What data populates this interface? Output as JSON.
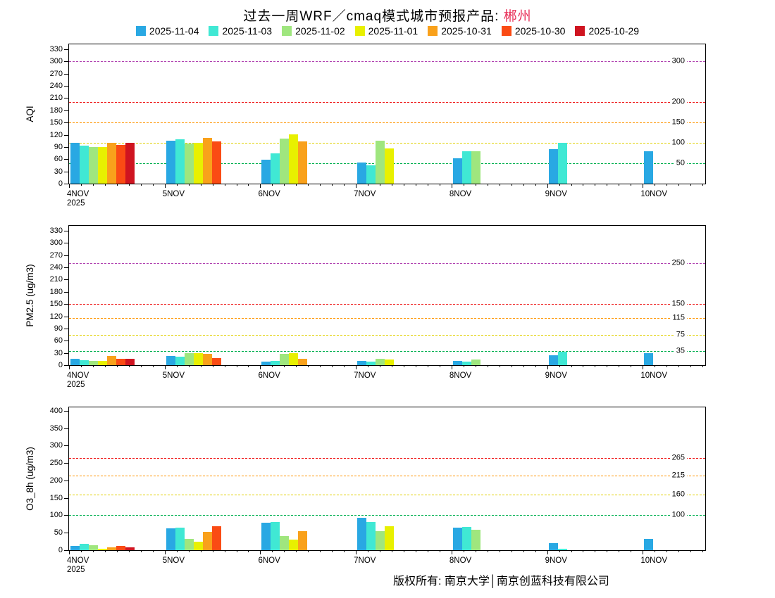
{
  "title": {
    "prefix": "过去一周WRF／cmaq模式城市预报产品: ",
    "city": "郴州",
    "city_color": "#e8335a"
  },
  "footer": "版权所有: 南京大学│南京创蓝科技有限公司",
  "x_sub_label": "2025",
  "legend": [
    {
      "label": "2025-11-04",
      "color": "#29a8e3"
    },
    {
      "label": "2025-11-03",
      "color": "#40e8d4"
    },
    {
      "label": "2025-11-02",
      "color": "#9fe67e"
    },
    {
      "label": "2025-11-01",
      "color": "#e8f000"
    },
    {
      "label": "2025-10-31",
      "color": "#f9a11b"
    },
    {
      "label": "2025-10-30",
      "color": "#fa4b14"
    },
    {
      "label": "2025-10-29",
      "color": "#cf1420"
    }
  ],
  "chart_data": [
    {
      "type": "bar",
      "title": "AQI forecast by model run date",
      "ylabel": "AQI",
      "xlabel": "",
      "ylim": [
        0,
        342
      ],
      "yticks": [
        0,
        30,
        60,
        90,
        120,
        150,
        180,
        210,
        240,
        270,
        300,
        330
      ],
      "categories": [
        "4NOV",
        "5NOV",
        "6NOV",
        "7NOV",
        "8NOV",
        "9NOV",
        "10NOV"
      ],
      "legend_position": "top",
      "grid": false,
      "ref_lines": [
        {
          "value": 50,
          "color": "#00b050",
          "label": "50"
        },
        {
          "value": 100,
          "color": "#e0d000",
          "label": "100"
        },
        {
          "value": 150,
          "color": "#ff9500",
          "label": "150"
        },
        {
          "value": 200,
          "color": "#ee1111",
          "label": "200"
        },
        {
          "value": 300,
          "color": "#b040b0",
          "label": "300"
        }
      ],
      "series": [
        {
          "name": "2025-11-04",
          "color": "#29a8e3",
          "values": [
            100,
            105,
            58,
            52,
            62,
            85,
            80
          ]
        },
        {
          "name": "2025-11-03",
          "color": "#40e8d4",
          "values": [
            93,
            108,
            75,
            45,
            79,
            101,
            null
          ]
        },
        {
          "name": "2025-11-02",
          "color": "#9fe67e",
          "values": [
            90,
            98,
            110,
            105,
            79,
            null,
            null
          ]
        },
        {
          "name": "2025-11-01",
          "color": "#e8f000",
          "values": [
            90,
            100,
            121,
            87,
            null,
            null,
            null
          ]
        },
        {
          "name": "2025-10-31",
          "color": "#f9a11b",
          "values": [
            100,
            112,
            104,
            null,
            null,
            null,
            null
          ]
        },
        {
          "name": "2025-10-30",
          "color": "#fa4b14",
          "values": [
            95,
            103,
            null,
            null,
            null,
            null,
            null
          ]
        },
        {
          "name": "2025-10-29",
          "color": "#cf1420",
          "values": [
            100,
            null,
            null,
            null,
            null,
            null,
            null
          ]
        }
      ]
    },
    {
      "type": "bar",
      "title": "PM2.5 forecast by model run date",
      "ylabel": "PM2.5 (ug/m3)",
      "xlabel": "",
      "ylim": [
        0,
        342
      ],
      "yticks": [
        0,
        30,
        60,
        90,
        120,
        150,
        180,
        210,
        240,
        270,
        300,
        330
      ],
      "categories": [
        "4NOV",
        "5NOV",
        "6NOV",
        "7NOV",
        "8NOV",
        "9NOV",
        "10NOV"
      ],
      "legend_position": "top",
      "grid": false,
      "ref_lines": [
        {
          "value": 35,
          "color": "#00b050",
          "label": "35"
        },
        {
          "value": 75,
          "color": "#e0d000",
          "label": "75"
        },
        {
          "value": 115,
          "color": "#ff9500",
          "label": "115"
        },
        {
          "value": 150,
          "color": "#ee1111",
          "label": "150"
        },
        {
          "value": 250,
          "color": "#b040b0",
          "label": "250"
        }
      ],
      "series": [
        {
          "name": "2025-11-04",
          "color": "#29a8e3",
          "values": [
            15,
            22,
            8,
            10,
            10,
            25,
            30
          ]
        },
        {
          "name": "2025-11-03",
          "color": "#40e8d4",
          "values": [
            12,
            20,
            10,
            8,
            8,
            32,
            null
          ]
        },
        {
          "name": "2025-11-02",
          "color": "#9fe67e",
          "values": [
            10,
            30,
            28,
            15,
            14,
            null,
            null
          ]
        },
        {
          "name": "2025-11-01",
          "color": "#e8f000",
          "values": [
            10,
            30,
            30,
            13,
            null,
            null,
            null
          ]
        },
        {
          "name": "2025-10-31",
          "color": "#f9a11b",
          "values": [
            22,
            27,
            15,
            null,
            null,
            null,
            null
          ]
        },
        {
          "name": "2025-10-30",
          "color": "#fa4b14",
          "values": [
            15,
            18,
            null,
            null,
            null,
            null,
            null
          ]
        },
        {
          "name": "2025-10-29",
          "color": "#cf1420",
          "values": [
            15,
            null,
            null,
            null,
            null,
            null,
            null
          ]
        }
      ]
    },
    {
      "type": "bar",
      "title": "O3_8h forecast by model run date",
      "ylabel": "O3_8h (ug/m3)",
      "xlabel": "",
      "ylim": [
        0,
        410
      ],
      "yticks": [
        0,
        50,
        100,
        150,
        200,
        250,
        300,
        350,
        400
      ],
      "categories": [
        "4NOV",
        "5NOV",
        "6NOV",
        "7NOV",
        "8NOV",
        "9NOV",
        "10NOV"
      ],
      "legend_position": "top",
      "grid": false,
      "ref_lines": [
        {
          "value": 100,
          "color": "#00b050",
          "label": "100"
        },
        {
          "value": 160,
          "color": "#e0d000",
          "label": "160"
        },
        {
          "value": 215,
          "color": "#ff9500",
          "label": "215"
        },
        {
          "value": 265,
          "color": "#ee1111",
          "label": "265"
        }
      ],
      "series": [
        {
          "name": "2025-11-04",
          "color": "#29a8e3",
          "values": [
            12,
            62,
            78,
            93,
            65,
            20,
            33
          ]
        },
        {
          "name": "2025-11-03",
          "color": "#40e8d4",
          "values": [
            18,
            65,
            80,
            80,
            67,
            5,
            null
          ]
        },
        {
          "name": "2025-11-02",
          "color": "#9fe67e",
          "values": [
            15,
            32,
            40,
            55,
            58,
            null,
            null
          ]
        },
        {
          "name": "2025-11-01",
          "color": "#e8f000",
          "values": [
            5,
            25,
            30,
            68,
            null,
            null,
            null
          ]
        },
        {
          "name": "2025-10-31",
          "color": "#f9a11b",
          "values": [
            8,
            52,
            55,
            null,
            null,
            null,
            null
          ]
        },
        {
          "name": "2025-10-30",
          "color": "#fa4b14",
          "values": [
            12,
            68,
            null,
            null,
            null,
            null,
            null
          ]
        },
        {
          "name": "2025-10-29",
          "color": "#cf1420",
          "values": [
            8,
            null,
            null,
            null,
            null,
            null,
            null
          ]
        }
      ]
    }
  ]
}
